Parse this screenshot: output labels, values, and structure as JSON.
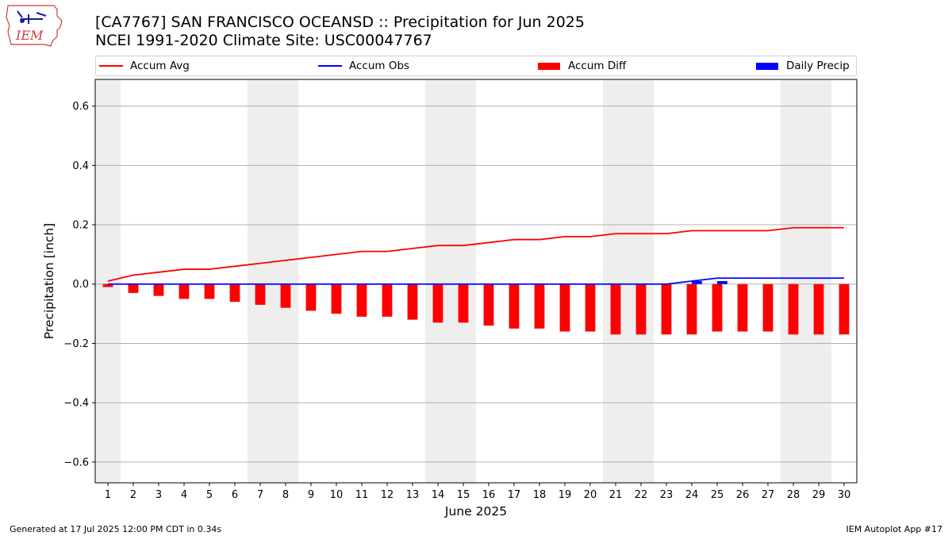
{
  "header": {
    "logo_text": "IEM",
    "title_line1": "[CA7767] SAN FRANCISCO OCEANSD :: Precipitation for Jun 2025",
    "title_line2": "NCEI 1991-2020 Climate Site: USC00047767"
  },
  "legend": {
    "placement": "top",
    "items": [
      {
        "label": "Accum Avg",
        "kind": "line",
        "color": "#ff0000"
      },
      {
        "label": "Accum Obs",
        "kind": "line",
        "color": "#0000ff"
      },
      {
        "label": "Accum Diff",
        "kind": "bar",
        "color": "#ff0000"
      },
      {
        "label": "Daily Precip",
        "kind": "bar",
        "color": "#0000ff"
      }
    ]
  },
  "footer": {
    "generated": "Generated at 17 Jul 2025 12:00 PM CDT in 0.34s",
    "app": "IEM Autoplot App #17"
  },
  "chart_data": {
    "type": "bar",
    "xlabel": "June 2025",
    "ylabel": "Precipitation [inch]",
    "ylim": [
      -0.67,
      0.69
    ],
    "yticks": [
      -0.6,
      -0.4,
      -0.2,
      0.0,
      0.2,
      0.4,
      0.6
    ],
    "ytick_labels": [
      "−0.6",
      "−0.4",
      "−0.2",
      "0.0",
      "0.2",
      "0.4",
      "0.6"
    ],
    "grid": "horizontal",
    "weekend_shading": [
      [
        1,
        1
      ],
      [
        7,
        8
      ],
      [
        14,
        15
      ],
      [
        21,
        22
      ],
      [
        28,
        29
      ]
    ],
    "days": [
      1,
      2,
      3,
      4,
      5,
      6,
      7,
      8,
      9,
      10,
      11,
      12,
      13,
      14,
      15,
      16,
      17,
      18,
      19,
      20,
      21,
      22,
      23,
      24,
      25,
      26,
      27,
      28,
      29,
      30
    ],
    "series": [
      {
        "name": "Accum Avg",
        "kind": "line",
        "color": "#ff0000",
        "values": [
          0.01,
          0.03,
          0.04,
          0.05,
          0.05,
          0.06,
          0.07,
          0.08,
          0.09,
          0.1,
          0.11,
          0.11,
          0.12,
          0.13,
          0.13,
          0.14,
          0.15,
          0.15,
          0.16,
          0.16,
          0.17,
          0.17,
          0.17,
          0.18,
          0.18,
          0.18,
          0.18,
          0.19,
          0.19,
          0.19
        ]
      },
      {
        "name": "Accum Obs",
        "kind": "line",
        "color": "#0000ff",
        "values": [
          0,
          0,
          0,
          0,
          0,
          0,
          0,
          0,
          0,
          0,
          0,
          0,
          0,
          0,
          0,
          0,
          0,
          0,
          0,
          0,
          0,
          0,
          0,
          0.01,
          0.02,
          0.02,
          0.02,
          0.02,
          0.02,
          0.02
        ]
      },
      {
        "name": "Accum Diff",
        "kind": "bar",
        "color": "#ff0000",
        "values": [
          -0.01,
          -0.03,
          -0.04,
          -0.05,
          -0.05,
          -0.06,
          -0.07,
          -0.08,
          -0.09,
          -0.1,
          -0.11,
          -0.11,
          -0.12,
          -0.13,
          -0.13,
          -0.14,
          -0.15,
          -0.15,
          -0.16,
          -0.16,
          -0.17,
          -0.17,
          -0.17,
          -0.17,
          -0.16,
          -0.16,
          -0.16,
          -0.17,
          -0.17,
          -0.17
        ]
      },
      {
        "name": "Daily Precip",
        "kind": "bar",
        "color": "#0000ff",
        "values": [
          0,
          0,
          0,
          0,
          0,
          0,
          0,
          0,
          0,
          0,
          0,
          0,
          0,
          0,
          0,
          0,
          0,
          0,
          0,
          0,
          0,
          0,
          0,
          0.01,
          0.01,
          0,
          0,
          0,
          0,
          0
        ]
      }
    ]
  }
}
